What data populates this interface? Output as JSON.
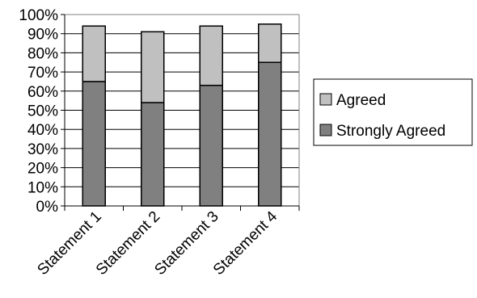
{
  "chart_data": {
    "type": "bar",
    "stacked": true,
    "categories": [
      "Statement 1",
      "Statement 2",
      "Statement 3",
      "Statement 4"
    ],
    "series": [
      {
        "name": "Strongly Agreed",
        "values": [
          65,
          54,
          63,
          75
        ],
        "color": "#808080"
      },
      {
        "name": "Agreed",
        "values": [
          29,
          37,
          31,
          20
        ],
        "color": "#c0c0c0"
      }
    ],
    "y_tick_labels": [
      "0%",
      "10%",
      "20%",
      "30%",
      "40%",
      "50%",
      "60%",
      "70%",
      "80%",
      "90%",
      "100%"
    ],
    "ylim": [
      0,
      100
    ],
    "grid": true,
    "legend_position": "right",
    "legend_order": [
      "Agreed",
      "Strongly Agreed"
    ]
  }
}
